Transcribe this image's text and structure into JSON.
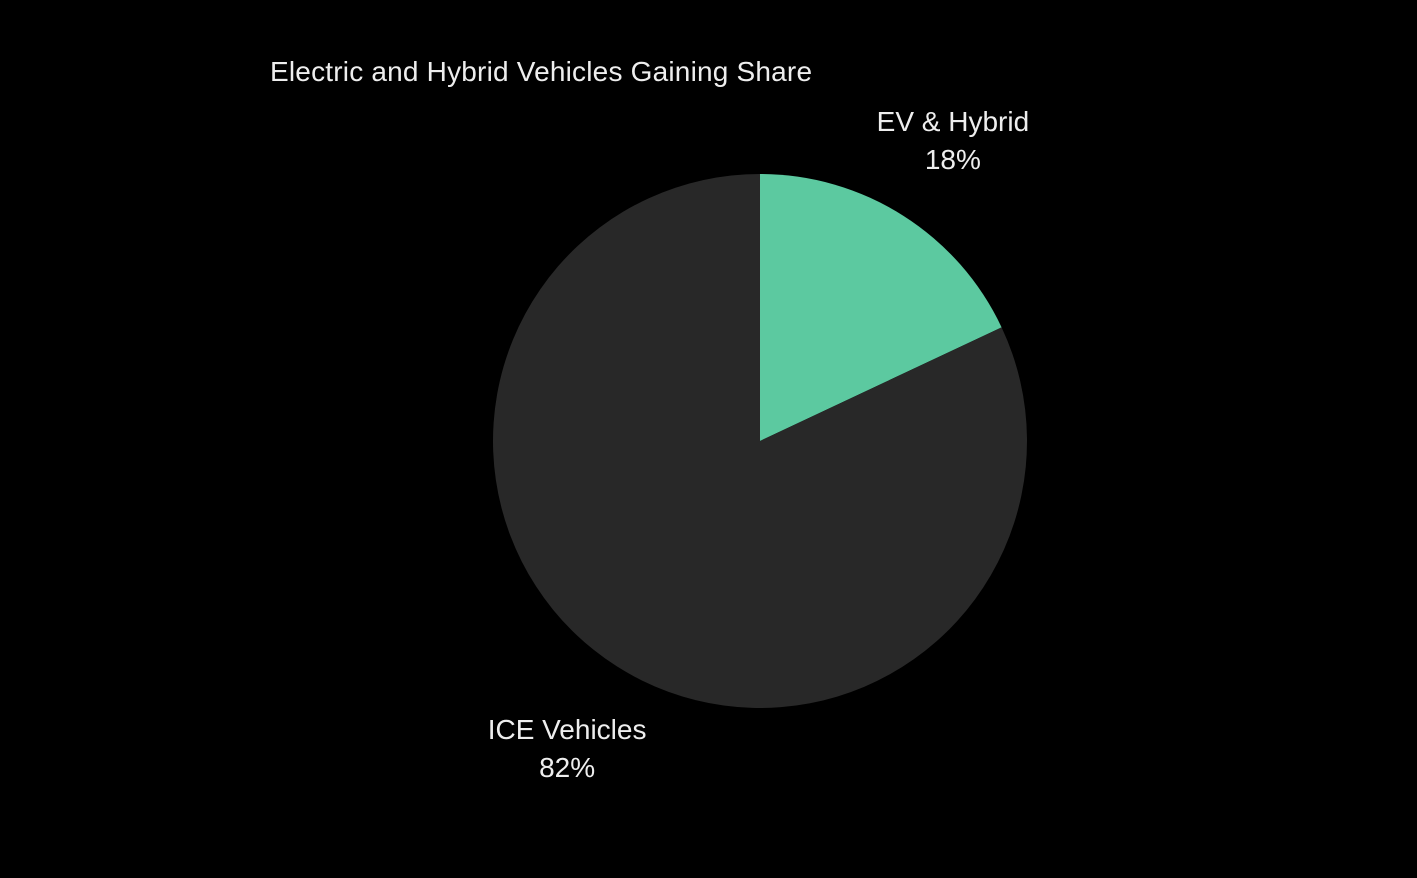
{
  "chart_data": {
    "type": "pie",
    "title": "Electric and Hybrid Vehicles Gaining Share",
    "slices": [
      {
        "label": "EV & Hybrid",
        "value": 18,
        "value_label": "18%",
        "color": "#5cc9a0"
      },
      {
        "label": "ICE Vehicles",
        "value": 82,
        "value_label": "82%",
        "color": "#282828"
      }
    ],
    "start_angle": "12 o'clock",
    "direction": "clockwise",
    "legend": "none",
    "labels": "outside"
  },
  "theme": {
    "background": "#000000",
    "text": "#eeeeee"
  }
}
